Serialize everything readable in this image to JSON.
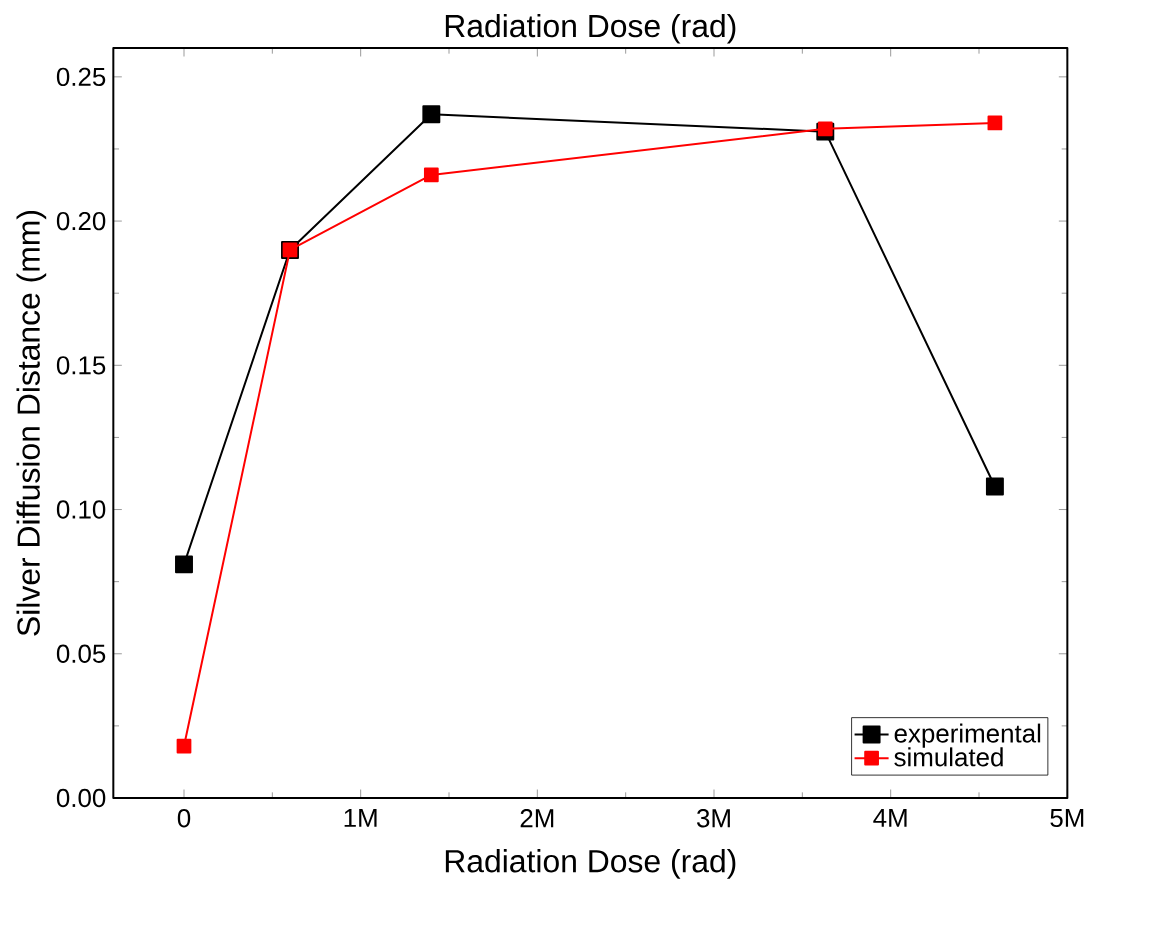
{
  "chart_data": {
    "type": "line",
    "x2label": "Radiation Dose (rad)",
    "xlabel": "Radiation Dose (rad)",
    "ylabel": "Silver Diffusion Distance (mm)",
    "xlim": [
      -400000,
      5000000
    ],
    "xticks": [
      0,
      {
        "value": 1000000,
        "label": "1M"
      },
      {
        "value": 2000000,
        "label": "2M"
      },
      {
        "value": 3000000,
        "label": "3M"
      },
      {
        "value": 4000000,
        "label": "4M"
      },
      {
        "value": 5000000,
        "label": "5M"
      }
    ],
    "ylim": [
      0,
      0.26
    ],
    "yticks": [
      {
        "value": 0,
        "label": "0.00"
      },
      {
        "value": 0.05,
        "label": "0.05"
      },
      {
        "value": 0.1,
        "label": "0.10"
      },
      {
        "value": 0.15,
        "label": "0.15"
      },
      {
        "value": 0.2,
        "label": "0.20"
      },
      {
        "value": 0.25,
        "label": "0.25"
      }
    ],
    "x": [
      0,
      600000,
      1400000,
      3630000,
      4590000
    ],
    "series": [
      {
        "name": "experimental",
        "color": "#000000",
        "values": [
          0.081,
          0.19,
          0.237,
          0.231,
          0.108
        ]
      },
      {
        "name": "simulated",
        "color": "#ff0000",
        "values": [
          0.018,
          0.19,
          0.216,
          0.232,
          0.234
        ]
      }
    ],
    "marker": "square",
    "line_style": "solid",
    "grid": false,
    "legend": "bottom right"
  }
}
